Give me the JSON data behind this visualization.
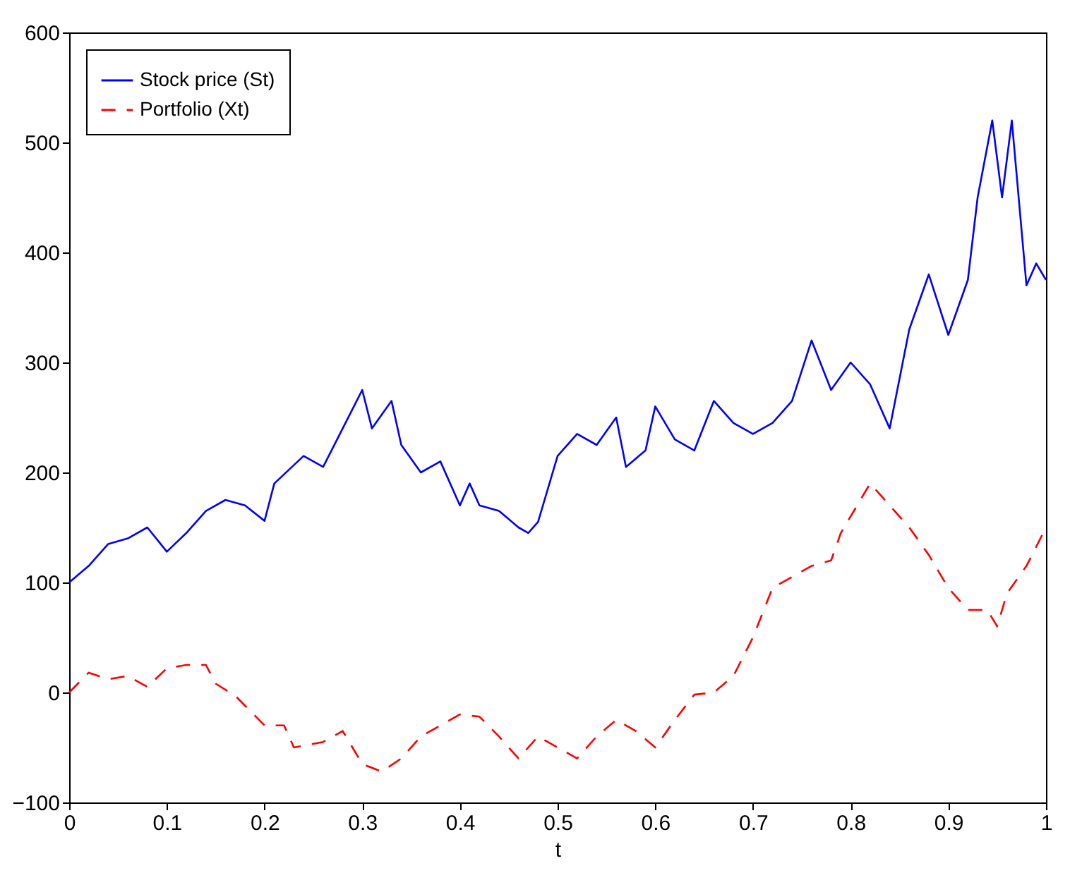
{
  "chart_data": {
    "type": "line",
    "xlabel": "t",
    "xlim": [
      0,
      1
    ],
    "xticks": [
      0,
      0.1,
      0.2,
      0.3,
      0.4,
      0.5,
      0.6,
      0.7,
      0.8,
      0.9,
      1
    ],
    "ylim": [
      -100,
      600
    ],
    "yticks": [
      -100,
      0,
      100,
      200,
      300,
      400,
      500,
      600
    ],
    "grid": false,
    "legend": "top left",
    "marker": "none",
    "series": [
      {
        "name": "Stock price (St)",
        "color": "#0000ff",
        "line_style": "solid",
        "x": [
          0,
          0.02,
          0.04,
          0.06,
          0.08,
          0.1,
          0.12,
          0.14,
          0.16,
          0.18,
          0.2,
          0.21,
          0.24,
          0.26,
          0.28,
          0.3,
          0.31,
          0.33,
          0.34,
          0.36,
          0.38,
          0.4,
          0.41,
          0.42,
          0.44,
          0.46,
          0.47,
          0.48,
          0.5,
          0.52,
          0.54,
          0.56,
          0.57,
          0.59,
          0.6,
          0.62,
          0.64,
          0.66,
          0.68,
          0.7,
          0.72,
          0.74,
          0.76,
          0.78,
          0.8,
          0.82,
          0.84,
          0.86,
          0.88,
          0.9,
          0.92,
          0.93,
          0.945,
          0.955,
          0.965,
          0.98,
          0.99,
          1
        ],
        "values": [
          100,
          115,
          135,
          140,
          150,
          128,
          145,
          165,
          175,
          170,
          156,
          190,
          215,
          205,
          240,
          275,
          240,
          265,
          225,
          200,
          210,
          170,
          190,
          170,
          165,
          150,
          145,
          155,
          215,
          235,
          225,
          250,
          205,
          220,
          260,
          230,
          220,
          265,
          245,
          235,
          245,
          265,
          320,
          275,
          300,
          280,
          240,
          330,
          380,
          325,
          375,
          450,
          520,
          450,
          520,
          370,
          390,
          375
        ]
      },
      {
        "name": "Portfolio (Xt)",
        "color": "#ff0000",
        "line_style": "dashed",
        "x": [
          0,
          0.02,
          0.04,
          0.06,
          0.08,
          0.1,
          0.12,
          0.14,
          0.15,
          0.17,
          0.2,
          0.22,
          0.23,
          0.26,
          0.28,
          0.3,
          0.32,
          0.34,
          0.36,
          0.38,
          0.4,
          0.42,
          0.44,
          0.46,
          0.48,
          0.5,
          0.52,
          0.54,
          0.56,
          0.58,
          0.6,
          0.62,
          0.64,
          0.66,
          0.68,
          0.7,
          0.72,
          0.74,
          0.76,
          0.78,
          0.79,
          0.82,
          0.84,
          0.86,
          0.88,
          0.9,
          0.92,
          0.94,
          0.95,
          0.96,
          0.98,
          1
        ],
        "values": [
          0,
          18,
          12,
          15,
          5,
          22,
          25,
          25,
          8,
          -3,
          -30,
          -30,
          -50,
          -45,
          -35,
          -65,
          -72,
          -60,
          -40,
          -30,
          -20,
          -22,
          -40,
          -60,
          -40,
          -50,
          -60,
          -40,
          -25,
          -35,
          -50,
          -25,
          -2,
          0,
          15,
          50,
          95,
          105,
          115,
          120,
          145,
          190,
          170,
          150,
          125,
          95,
          75,
          75,
          60,
          90,
          115,
          150
        ]
      }
    ]
  }
}
